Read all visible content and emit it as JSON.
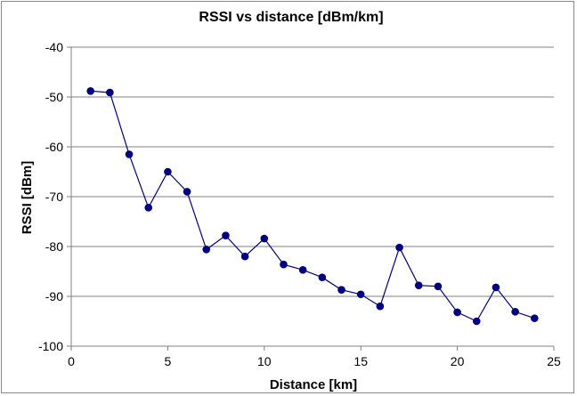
{
  "chart_data": {
    "type": "line",
    "title": "RSSI vs distance [dBm/km]",
    "xlabel": "Distance [km]",
    "ylabel": "RSSI [dBm]",
    "xlim": [
      0,
      25
    ],
    "ylim": [
      -100,
      -40
    ],
    "x_ticks": [
      "0",
      "5",
      "10",
      "15",
      "20",
      "25"
    ],
    "y_ticks": [
      "-40",
      "-50",
      "-60",
      "-70",
      "-80",
      "-90",
      "-100"
    ],
    "grid": "horizontal",
    "legend": "none",
    "series": [
      {
        "color": "#000080",
        "marker": "circle",
        "x": [
          1,
          2,
          3,
          4,
          5,
          6,
          7,
          8,
          9,
          10,
          11,
          12,
          13,
          14,
          15,
          16,
          17,
          18,
          19,
          20,
          21,
          22,
          23,
          24
        ],
        "y": [
          -48.8,
          -49.1,
          -61.5,
          -72.2,
          -65.0,
          -69.0,
          -80.6,
          -77.8,
          -82.0,
          -78.4,
          -83.6,
          -84.7,
          -86.2,
          -88.7,
          -89.6,
          -92.0,
          -80.2,
          -87.8,
          -88.0,
          -93.2,
          -95.0,
          -88.2,
          -93.1,
          -94.4
        ]
      }
    ]
  }
}
